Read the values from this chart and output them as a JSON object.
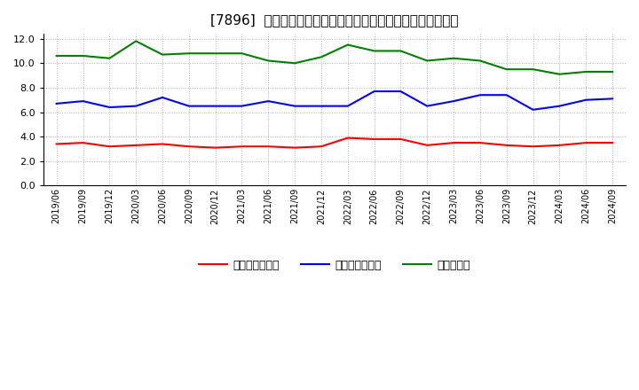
{
  "title": "[7896]  売上債権回転率、買入債務回転率、在庫回転率の推移",
  "x_labels": [
    "2019/06",
    "2019/09",
    "2019/12",
    "2020/03",
    "2020/06",
    "2020/09",
    "2020/12",
    "2021/03",
    "2021/06",
    "2021/09",
    "2021/12",
    "2022/03",
    "2022/06",
    "2022/09",
    "2022/12",
    "2023/03",
    "2023/06",
    "2023/09",
    "2023/12",
    "2024/03",
    "2024/06",
    "2024/09"
  ],
  "receivables_turnover": [
    3.4,
    3.5,
    3.2,
    3.3,
    3.4,
    3.2,
    3.1,
    3.2,
    3.2,
    3.1,
    3.2,
    3.9,
    3.8,
    3.8,
    3.3,
    3.5,
    3.5,
    3.3,
    3.2,
    3.3,
    3.5,
    3.5
  ],
  "payables_turnover": [
    6.7,
    6.9,
    6.4,
    6.5,
    7.2,
    6.5,
    6.5,
    6.5,
    6.9,
    6.5,
    6.5,
    6.5,
    7.7,
    7.7,
    6.5,
    6.9,
    7.4,
    7.4,
    6.2,
    6.5,
    7.0,
    7.1
  ],
  "inventory_turnover": [
    10.6,
    10.6,
    10.4,
    11.8,
    10.7,
    10.8,
    10.8,
    10.8,
    10.2,
    10.0,
    10.5,
    11.5,
    11.0,
    11.0,
    10.2,
    10.4,
    10.2,
    9.5,
    9.5,
    9.1,
    9.3,
    9.3
  ],
  "colors": {
    "receivables": "#ff0000",
    "payables": "#0000ff",
    "inventory": "#008000"
  },
  "legend_labels": [
    "売上債権回転率",
    "買入債務回転率",
    "在庫回転率"
  ],
  "ylim": [
    0,
    12.4
  ],
  "yticks": [
    0.0,
    2.0,
    4.0,
    6.0,
    8.0,
    10.0,
    12.0
  ],
  "background_color": "#ffffff",
  "grid_color": "#999999",
  "title_fontsize": 11,
  "linewidth": 1.5
}
